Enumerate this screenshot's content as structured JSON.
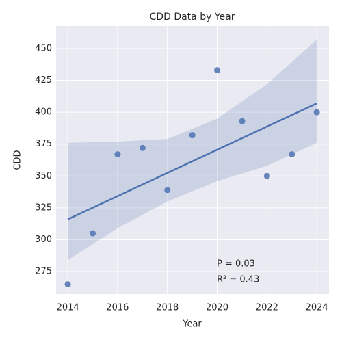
{
  "chart_data": {
    "type": "regplot",
    "title": "CDD Data by Year",
    "x_label": "Year",
    "y_label": "CDD",
    "x": [
      2014,
      2015,
      2016,
      2017,
      2018,
      2019,
      2020,
      2021,
      2022,
      2023,
      2024
    ],
    "values": [
      265,
      305,
      367,
      372,
      339,
      382,
      433,
      393,
      350,
      367,
      400
    ],
    "color": "#4c72b0",
    "fit": {
      "x": [
        2014,
        2024
      ],
      "values": [
        316,
        407
      ]
    },
    "band": {
      "x": [
        2014,
        2016,
        2018,
        2020,
        2022,
        2024
      ],
      "upper": [
        376,
        377,
        379,
        395,
        422,
        457
      ],
      "lower": [
        284,
        309,
        330,
        346,
        358,
        376
      ]
    },
    "annotations": [
      "P = 0.03",
      "R² = 0.43"
    ],
    "xlim": [
      2013.53,
      2024.49
    ],
    "ylim": [
      257.3,
      467.7
    ],
    "xticks": [
      2014,
      2016,
      2018,
      2020,
      2022,
      2024
    ],
    "yticks": [
      275,
      300,
      325,
      350,
      375,
      400,
      425,
      450
    ],
    "grid": true
  }
}
